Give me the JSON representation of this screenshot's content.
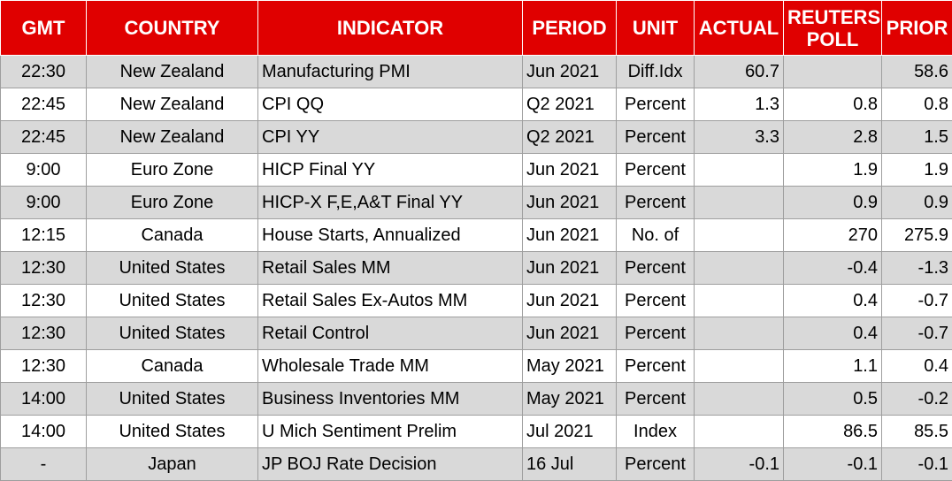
{
  "table": {
    "headers": {
      "gmt": "GMT",
      "country": "COUNTRY",
      "indicator": "INDICATOR",
      "period": "PERIOD",
      "unit": "UNIT",
      "actual": "ACTUAL",
      "poll_line1": "REUTERS",
      "poll_line2": "POLL",
      "prior": "PRIOR"
    },
    "rows": [
      {
        "gmt": "22:30",
        "country": "New Zealand",
        "indicator": "Manufacturing PMI",
        "period": "Jun 2021",
        "unit": "Diff.Idx",
        "actual": "60.7",
        "poll": "",
        "prior": "58.6"
      },
      {
        "gmt": "22:45",
        "country": "New Zealand",
        "indicator": "CPI QQ",
        "period": "Q2 2021",
        "unit": "Percent",
        "actual": "1.3",
        "poll": "0.8",
        "prior": "0.8"
      },
      {
        "gmt": "22:45",
        "country": "New Zealand",
        "indicator": "CPI YY",
        "period": "Q2 2021",
        "unit": "Percent",
        "actual": "3.3",
        "poll": "2.8",
        "prior": "1.5"
      },
      {
        "gmt": "9:00",
        "country": "Euro Zone",
        "indicator": "HICP Final YY",
        "period": "Jun 2021",
        "unit": "Percent",
        "actual": "",
        "poll": "1.9",
        "prior": "1.9"
      },
      {
        "gmt": "9:00",
        "country": "Euro Zone",
        "indicator": "HICP-X F,E,A&T Final YY",
        "period": "Jun 2021",
        "unit": "Percent",
        "actual": "",
        "poll": "0.9",
        "prior": "0.9"
      },
      {
        "gmt": "12:15",
        "country": "Canada",
        "indicator": "House Starts, Annualized",
        "period": "Jun 2021",
        "unit": "No. of",
        "actual": "",
        "poll": "270",
        "prior": "275.9"
      },
      {
        "gmt": "12:30",
        "country": "United States",
        "indicator": "Retail Sales MM",
        "period": "Jun 2021",
        "unit": "Percent",
        "actual": "",
        "poll": "-0.4",
        "prior": "-1.3"
      },
      {
        "gmt": "12:30",
        "country": "United States",
        "indicator": "Retail Sales Ex-Autos MM",
        "period": "Jun 2021",
        "unit": "Percent",
        "actual": "",
        "poll": "0.4",
        "prior": "-0.7"
      },
      {
        "gmt": "12:30",
        "country": "United States",
        "indicator": "Retail Control",
        "period": "Jun 2021",
        "unit": "Percent",
        "actual": "",
        "poll": "0.4",
        "prior": "-0.7"
      },
      {
        "gmt": "12:30",
        "country": "Canada",
        "indicator": "Wholesale Trade MM",
        "period": "May 2021",
        "unit": "Percent",
        "actual": "",
        "poll": "1.1",
        "prior": "0.4"
      },
      {
        "gmt": "14:00",
        "country": "United States",
        "indicator": "Business Inventories MM",
        "period": "May 2021",
        "unit": "Percent",
        "actual": "",
        "poll": "0.5",
        "prior": "-0.2"
      },
      {
        "gmt": "14:00",
        "country": "United States",
        "indicator": "U Mich Sentiment Prelim",
        "period": "Jul 2021",
        "unit": "Index",
        "actual": "",
        "poll": "86.5",
        "prior": "85.5"
      },
      {
        "gmt": "-",
        "country": "Japan",
        "indicator": "JP BOJ Rate Decision",
        "period": "16 Jul",
        "unit": "Percent",
        "actual": "-0.1",
        "poll": "-0.1",
        "prior": "-0.1"
      }
    ]
  },
  "colors": {
    "header_bg": "#e00000",
    "header_text": "#ffffff",
    "row_shade": "#d9d9d9",
    "row_plain": "#ffffff"
  }
}
